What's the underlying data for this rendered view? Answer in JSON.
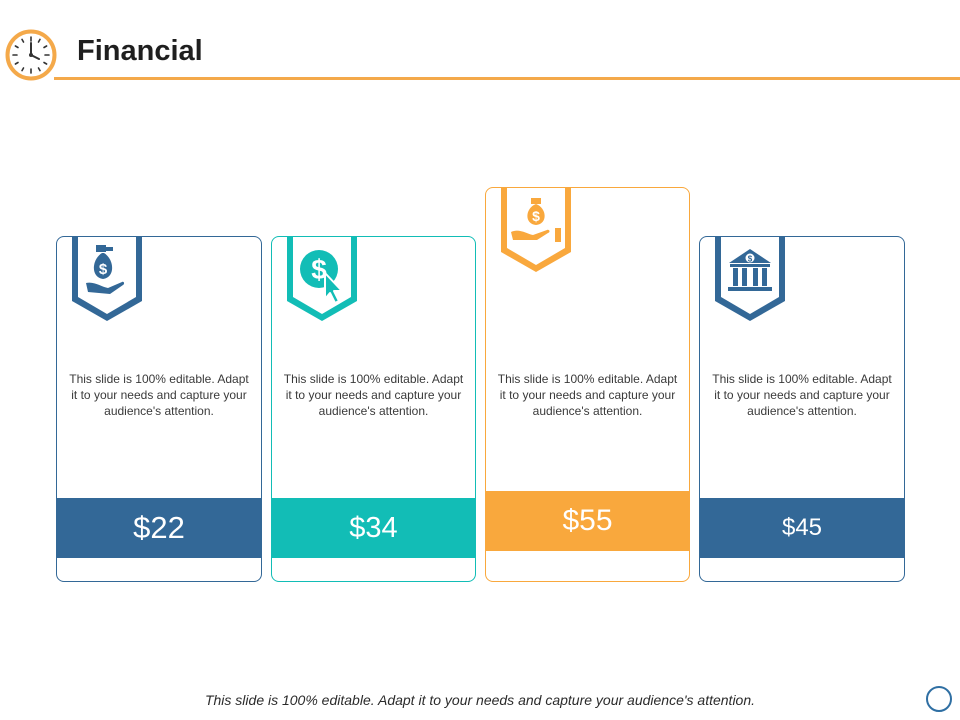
{
  "header": {
    "title": "Financial",
    "icon": "clock-icon",
    "accent_color": "#f4a94a"
  },
  "cards": [
    {
      "icon": "money-bag-hand-icon",
      "color": "#336897",
      "description": "This slide is 100% editable. Adapt it to your needs and capture your audience's attention.",
      "price": "$22"
    },
    {
      "icon": "dollar-cursor-icon",
      "color": "#12bdb6",
      "description": "This slide is 100% editable. Adapt it to your needs and capture your audience's attention.",
      "price": "$34"
    },
    {
      "icon": "money-bag-hand-icon",
      "color": "#f9a83d",
      "description": "This slide is 100% editable. Adapt it to your needs and capture your audience's attention.",
      "price": "$55"
    },
    {
      "icon": "bank-icon",
      "color": "#336897",
      "description": "This slide is 100% editable. Adapt it to your needs and capture your audience's attention.",
      "price": "$45"
    }
  ],
  "footer": {
    "note": "This slide is 100% editable. Adapt it to your needs and capture your audience's attention."
  }
}
